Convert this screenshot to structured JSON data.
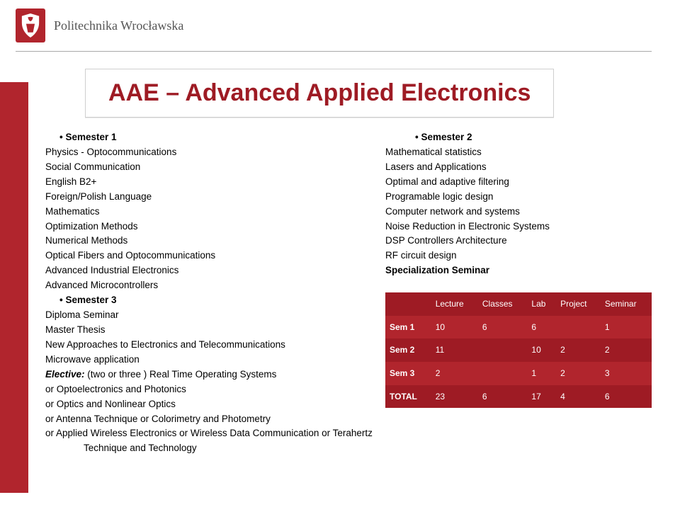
{
  "header": {
    "university": "Politechnika Wrocławska"
  },
  "title": "AAE – Advanced Applied Electronics",
  "left": {
    "sem1_label": "Semester 1",
    "sem1_items": [
      "Physics - Optocommunications",
      "Social Communication",
      "English B2+",
      "Foreign/Polish Language",
      "Mathematics",
      "Optimization Methods",
      "Numerical Methods",
      "Optical Fibers and Optocommunications",
      "Advanced Industrial Electronics",
      "Advanced Microcontrollers"
    ],
    "sem3_label": "Semester 3",
    "sem3_items": [
      "Diploma Seminar",
      "Master Thesis",
      "New Approaches to Electronics and Telecommunications",
      "Microwave application"
    ],
    "elective_prefix": "Elective:",
    "elective_first_rest": " (two or three ) Real Time Operating Systems",
    "elective_rest": [
      "or  Optoelectronics and Photonics",
      "or  Optics and Nonlinear Optics",
      "or  Antenna Technique   or  Colorimetry and Photometry",
      "or  Applied Wireless Electronics   or  Wireless Data Communication   or  Terahertz Technique and Technology"
    ]
  },
  "right": {
    "sem2_label": "Semester 2",
    "sem2_items": [
      "Mathematical statistics",
      "Lasers and Applications",
      "Optimal and adaptive filtering",
      "Programable logic design",
      "Computer network and systems",
      "Noise Reduction in Electronic Systems",
      "DSP Controllers Architecture",
      "RF circuit design"
    ],
    "spec_bold": "Specialization Seminar"
  },
  "table": {
    "headers": [
      "",
      "Lecture",
      "Classes",
      "Lab",
      "Project",
      "Seminar"
    ],
    "rows": [
      [
        "Sem 1",
        "10",
        "6",
        "6",
        "",
        "1"
      ],
      [
        "Sem 2",
        "11",
        "",
        "10",
        "2",
        "2"
      ],
      [
        "Sem 3",
        "2",
        "",
        "1",
        "2",
        "3"
      ],
      [
        "TOTAL",
        "23",
        "6",
        "17",
        "4",
        "6"
      ]
    ],
    "colors": {
      "bg_even": "#b1252d",
      "bg_odd": "#9e1b24",
      "text": "#ffffff"
    }
  }
}
